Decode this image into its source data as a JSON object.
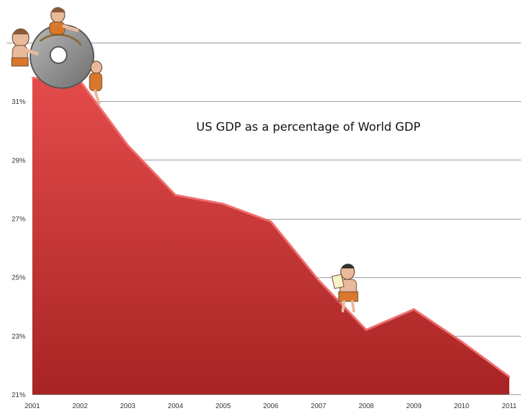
{
  "chart_data": {
    "type": "area",
    "title": "US GDP as a percentage of World GDP",
    "xlabel": "",
    "ylabel": "",
    "x": [
      "2001",
      "2002",
      "2003",
      "2004",
      "2005",
      "2006",
      "2007",
      "2008",
      "2009",
      "2010",
      "2011"
    ],
    "y_tick_labels": [
      "21%",
      "23%",
      "25%",
      "27%",
      "29%",
      "31%"
    ],
    "y_ticks": [
      21,
      23,
      25,
      27,
      29,
      31
    ],
    "ylim": [
      21,
      33
    ],
    "series": [
      {
        "values": [
          31.8,
          31.7,
          29.5,
          27.8,
          27.5,
          26.9,
          24.9,
          23.2,
          23.9,
          22.8,
          21.6
        ]
      }
    ],
    "grid": true,
    "legend": "none",
    "colors": {
      "fill_top": "#e44b4b",
      "fill_bottom": "#a82424",
      "edge": "#f07070",
      "grid": "#9a9a9a"
    },
    "decorations": [
      "cavemen-with-stone-wheel-illustration",
      "caveman-with-notepad-illustration"
    ]
  }
}
